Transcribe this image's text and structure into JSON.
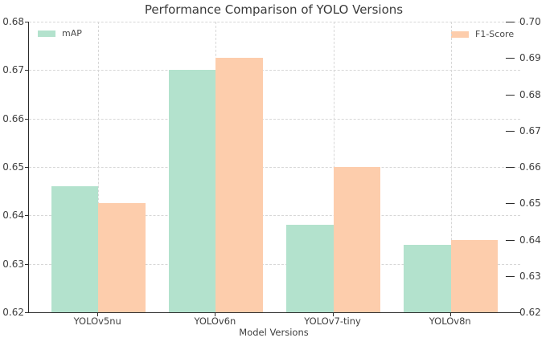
{
  "chart_data": {
    "type": "bar",
    "title": "Performance Comparison of YOLO Versions",
    "xlabel": "Model Versions",
    "ylabel_left": "",
    "ylabel_right": "",
    "categories": [
      "YOLOv5nu",
      "YOLOv6n",
      "YOLOv7-tiny",
      "YOLOv8n"
    ],
    "series": [
      {
        "name": "mAP",
        "axis": "left",
        "color": "#b3e2cd",
        "values": [
          0.646,
          0.67,
          0.638,
          0.634
        ]
      },
      {
        "name": "F1-Score",
        "axis": "right",
        "color": "#fdcdac",
        "values": [
          0.65,
          0.69,
          0.66,
          0.64
        ]
      }
    ],
    "left_axis": {
      "min": 0.62,
      "max": 0.68,
      "tick_step": 0.01,
      "ticks": [
        "0.68",
        "0.67",
        "0.66",
        "0.65",
        "0.64",
        "0.63",
        "0.62"
      ]
    },
    "right_axis": {
      "min": 0.62,
      "max": 0.7,
      "tick_step": 0.01,
      "ticks": [
        "0.70",
        "0.69",
        "0.68",
        "0.67",
        "0.66",
        "0.65",
        "0.64",
        "0.63",
        "0.62"
      ]
    },
    "grid": "dashed, on left-axis y-ticks and category x-ticks",
    "legend": {
      "left_entry": "mAP",
      "right_entry": "F1-Score",
      "position": "top-left and top-right inside plot"
    },
    "bar_width_fraction": 0.4,
    "xlim": [
      -0.59,
      3.59
    ]
  },
  "colors": {
    "map_green": "#b3e2cd",
    "f1_orange": "#fdcdac",
    "grid": "#d7d7d7",
    "spine": "#2b2b2b",
    "text": "#3f3f3f"
  }
}
